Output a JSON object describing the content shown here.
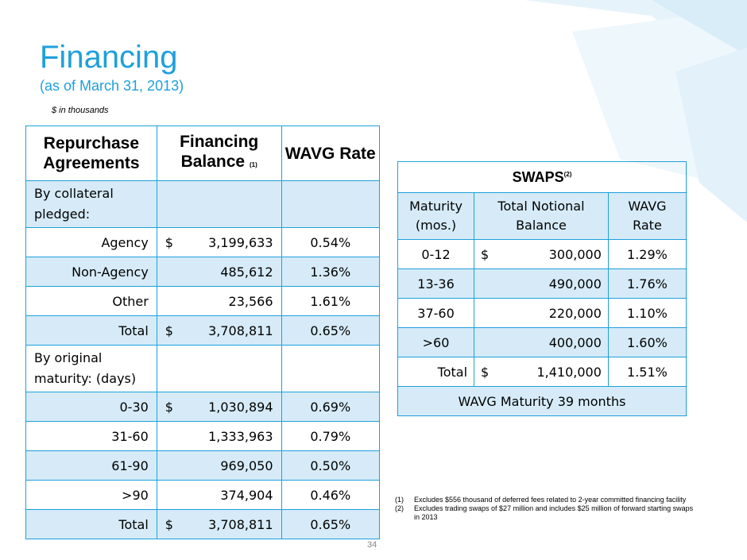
{
  "title": "Financing",
  "subtitle": "(as of March 31, 2013)",
  "units": "$ in thousands",
  "repo": {
    "headers": [
      "Repurchase Agreements",
      "Financing Balance",
      "WAVG Rate"
    ],
    "balance_note": "(1)",
    "section1": "By collateral pledged:",
    "rows1": [
      {
        "label": "Agency",
        "cur": "$",
        "bal": "3,199,633",
        "rate": "0.54%"
      },
      {
        "label": "Non-Agency",
        "cur": "",
        "bal": "485,612",
        "rate": "1.36%"
      },
      {
        "label": "Other",
        "cur": "",
        "bal": "23,566",
        "rate": "1.61%"
      },
      {
        "label": "Total",
        "cur": "$",
        "bal": "3,708,811",
        "rate": "0.65%"
      }
    ],
    "section2": "By original maturity: (days)",
    "rows2": [
      {
        "label": "0-30",
        "cur": "$",
        "bal": "1,030,894",
        "rate": "0.69%"
      },
      {
        "label": "31-60",
        "cur": "",
        "bal": "1,333,963",
        "rate": "0.79%"
      },
      {
        "label": "61-90",
        "cur": "",
        "bal": "969,050",
        "rate": "0.50%"
      },
      {
        "label": ">90",
        "cur": "",
        "bal": "374,904",
        "rate": "0.46%"
      },
      {
        "label": "Total",
        "cur": "$",
        "bal": "3,708,811",
        "rate": "0.65%"
      }
    ]
  },
  "swaps": {
    "title": "SWAPS",
    "title_note": "(2)",
    "headers": [
      "Maturity (mos.)",
      "Total Notional Balance",
      "WAVG Rate"
    ],
    "rows": [
      {
        "label": "0-12",
        "cur": "$",
        "bal": "300,000",
        "rate": "1.29%"
      },
      {
        "label": "13-36",
        "cur": "",
        "bal": "490,000",
        "rate": "1.76%"
      },
      {
        "label": "37-60",
        "cur": "",
        "bal": "220,000",
        "rate": "1.10%"
      },
      {
        "label": ">60",
        "cur": "",
        "bal": "400,000",
        "rate": "1.60%"
      },
      {
        "label": "Total",
        "cur": "$",
        "bal": "1,410,000",
        "rate": "1.51%"
      }
    ],
    "footer": "WAVG Maturity 39 months"
  },
  "notes": [
    {
      "num": "(1)",
      "text": "Excludes $556 thousand of deferred fees related to 2-year committed financing facility"
    },
    {
      "num": "(2)",
      "text": "Excludes trading swaps of $27 million and includes $25 million of forward starting swaps in 2013"
    }
  ],
  "page_number": "34",
  "colors": {
    "accent": "#1ea0dc",
    "shade": "#d6ebf7"
  }
}
